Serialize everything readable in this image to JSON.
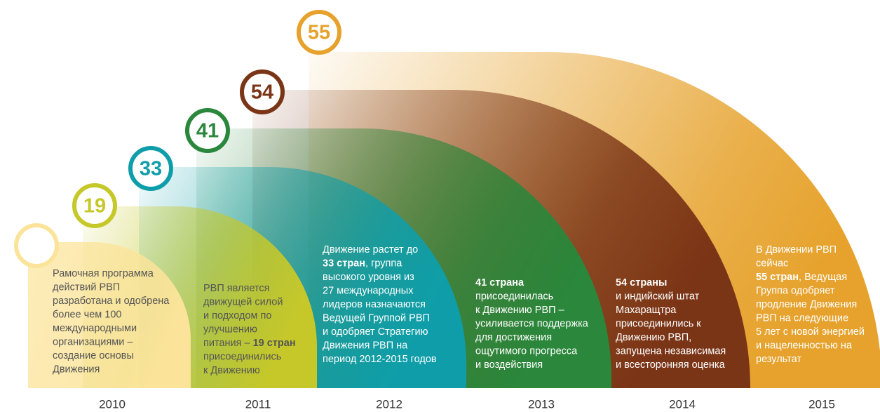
{
  "stages": [
    {
      "year": "2010",
      "color": "#fbe49a",
      "text_color": "#555555",
      "lines": [
        [
          {
            "text": "Рамочная программа"
          }
        ],
        [
          {
            "text": "действий РВП"
          }
        ],
        [
          {
            "text": "разработана и одобрена"
          }
        ],
        [
          {
            "text": "более чем 100"
          }
        ],
        [
          {
            "text": "международными"
          }
        ],
        [
          {
            "text": "организациями –"
          }
        ],
        [
          {
            "text": "создание основы"
          }
        ],
        [
          {
            "text": "Движения"
          }
        ]
      ]
    },
    {
      "year": "2011",
      "count": 19,
      "color": "#c6c82a",
      "text_color": "#555555",
      "lines": [
        [
          {
            "text": "РВП является"
          }
        ],
        [
          {
            "text": "движущей силой"
          }
        ],
        [
          {
            "text": "и подходом по"
          }
        ],
        [
          {
            "text": "улучшению"
          }
        ],
        [
          {
            "text": "питания – "
          },
          {
            "bold": "19 стран"
          }
        ],
        [
          {
            "text": "присоединились"
          }
        ],
        [
          {
            "text": "к Движению"
          }
        ]
      ]
    },
    {
      "year": "2012",
      "count": 33,
      "color": "#0f9ea9",
      "text_color": "#ffffff",
      "lines": [
        [
          {
            "text": "Движение растет до"
          }
        ],
        [
          {
            "bold": "33 стран"
          },
          {
            "text": ", группа"
          }
        ],
        [
          {
            "text": "высокого уровня из"
          }
        ],
        [
          {
            "text": "27 международных"
          }
        ],
        [
          {
            "text": "лидеров назначаются"
          }
        ],
        [
          {
            "text": "Ведущей Группой РВП"
          }
        ],
        [
          {
            "text": "и одобряет Стратегию"
          }
        ],
        [
          {
            "text": "Движения РВП на"
          }
        ],
        [
          {
            "text": "период 2012-2015 годов"
          }
        ]
      ]
    },
    {
      "year": "2013",
      "count": 41,
      "color": "#2a873b",
      "text_color": "#ffffff",
      "lines": [
        [
          {
            "bold": "41 страна"
          }
        ],
        [
          {
            "text": "присоединилась"
          }
        ],
        [
          {
            "text": "к Движению РВП –"
          }
        ],
        [
          {
            "text": "усиливается поддержка"
          }
        ],
        [
          {
            "text": "для достижения"
          }
        ],
        [
          {
            "text": "ощутимого прогресса"
          }
        ],
        [
          {
            "text": "и воздействия"
          }
        ]
      ]
    },
    {
      "year": "2014",
      "count": 54,
      "color": "#7a3416",
      "text_color": "#ffffff",
      "lines": [
        [
          {
            "bold": "54 страны"
          }
        ],
        [
          {
            "text": "и индийский штат"
          }
        ],
        [
          {
            "text": "Махаращтра"
          }
        ],
        [
          {
            "text": "присоединились к"
          }
        ],
        [
          {
            "text": "Движению РВП,"
          }
        ],
        [
          {
            "text": "запущена независимая"
          }
        ],
        [
          {
            "text": "и всесторонняя оценка"
          }
        ]
      ]
    },
    {
      "year": "2015",
      "count": 55,
      "color": "#e6a22c",
      "text_color": "#ffffff",
      "lines": [
        [
          {
            "text": "В Движении РВП"
          }
        ],
        [
          {
            "text": "сейчас"
          }
        ],
        [
          {
            "bold": "55 стран"
          },
          {
            "text": ", Ведущая"
          }
        ],
        [
          {
            "text": "Группа одобряет"
          }
        ],
        [
          {
            "text": "продление Движения"
          }
        ],
        [
          {
            "text": "РВП на следующие"
          }
        ],
        [
          {
            "text": "5 лет с новой энергией"
          }
        ],
        [
          {
            "text": "и нацеленностью на"
          }
        ],
        [
          {
            "text": "результат"
          }
        ]
      ]
    }
  ]
}
